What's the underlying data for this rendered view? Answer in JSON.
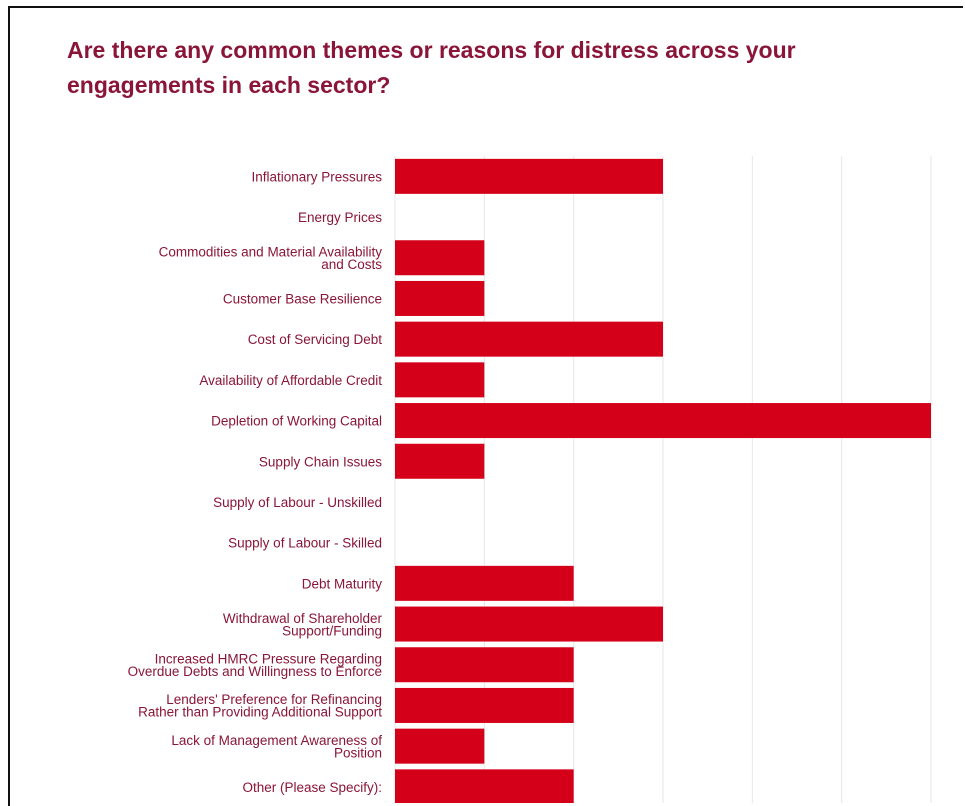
{
  "title": "Are there any common themes or reasons for distress across your engagements in each sector?",
  "colors": {
    "bar": "#d40019",
    "label": "#8a1538",
    "gridline": "#e6e6e6",
    "border": "#111111"
  },
  "chart_data": {
    "type": "bar",
    "orientation": "horizontal",
    "title": "Are there any common themes or reasons for distress across your engagements in each sector?",
    "xlabel": "",
    "ylabel": "",
    "xlim": [
      0,
      6
    ],
    "grid": true,
    "legend": "none",
    "categories": [
      "Inflationary Pressures",
      "Energy Prices",
      "Commodities and Material Availability and Costs",
      "Customer Base Resilience",
      "Cost of Servicing Debt",
      "Availability of Affordable Credit",
      "Depletion of Working Capital",
      "Supply Chain Issues",
      "Supply of Labour - Unskilled",
      "Supply of Labour - Skilled",
      "Debt Maturity",
      "Withdrawal of Shareholder Support/Funding",
      "Increased HMRC Pressure Regarding Overdue Debts and Willingness to Enforce",
      "Lenders' Preference for Refinancing Rather than Providing Additional Support",
      "Lack of Management Awareness of Position",
      "Other (Please Specify):"
    ],
    "label_lines": [
      [
        "Inflationary Pressures"
      ],
      [
        "Energy Prices"
      ],
      [
        "Commodities and Material Availability",
        "and Costs"
      ],
      [
        "Customer Base Resilience"
      ],
      [
        "Cost of Servicing Debt"
      ],
      [
        "Availability of Affordable Credit"
      ],
      [
        "Depletion of Working Capital"
      ],
      [
        "Supply Chain Issues"
      ],
      [
        "Supply of Labour - Unskilled"
      ],
      [
        "Supply of Labour - Skilled"
      ],
      [
        "Debt Maturity"
      ],
      [
        "Withdrawal of Shareholder",
        "Support/Funding"
      ],
      [
        "Increased HMRC Pressure Regarding",
        "Overdue Debts and Willingness to Enforce"
      ],
      [
        "Lenders' Preference for Refinancing",
        "Rather than Providing Additional Support"
      ],
      [
        "Lack of Management Awareness of",
        "Position"
      ],
      [
        "Other (Please Specify):"
      ]
    ],
    "values": [
      3,
      0,
      1,
      1,
      3,
      1,
      6,
      1,
      0,
      0,
      2,
      3,
      2,
      2,
      1,
      2
    ]
  }
}
